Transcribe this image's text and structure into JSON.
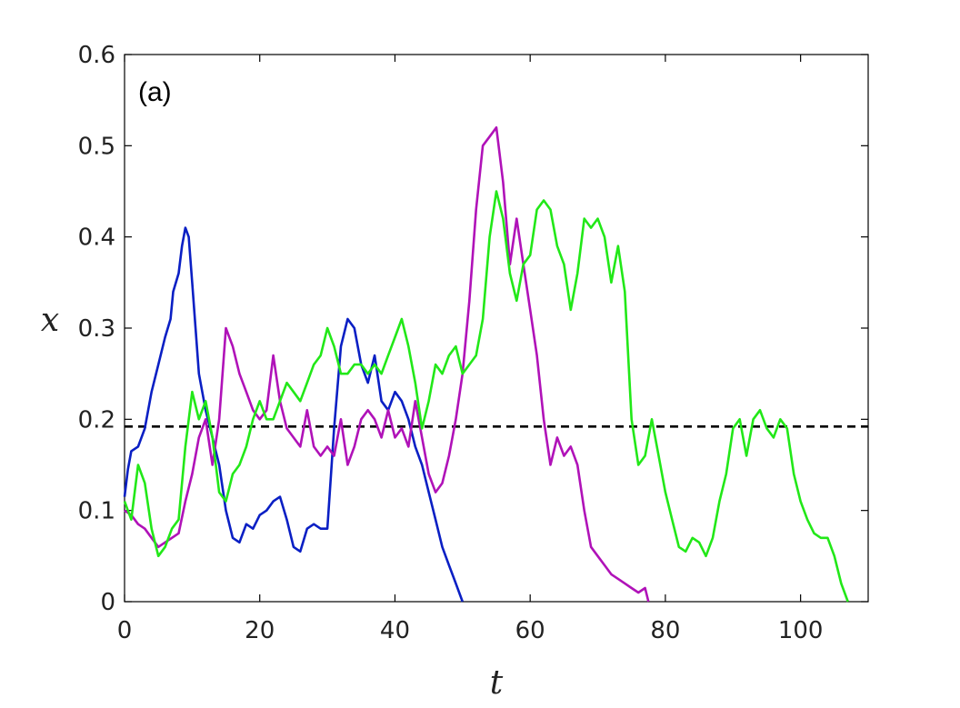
{
  "chart_data": {
    "type": "line",
    "title": "",
    "annotation": "(a)",
    "xlabel": "t",
    "ylabel": "x",
    "xlim": [
      0,
      110
    ],
    "ylim": [
      0,
      0.6
    ],
    "xticks": [
      0,
      20,
      40,
      60,
      80,
      100
    ],
    "yticks": [
      0,
      0.1,
      0.2,
      0.3,
      0.4,
      0.5,
      0.6
    ],
    "xtick_labels": [
      "0",
      "20",
      "40",
      "60",
      "80",
      "100"
    ],
    "ytick_labels": [
      "0",
      "0.1",
      "0.2",
      "0.3",
      "0.4",
      "0.5",
      "0.6"
    ],
    "grid": false,
    "legend": "none",
    "reference_line": {
      "y": 0.192,
      "style": "dashed",
      "color": "#000000"
    },
    "series": [
      {
        "color": "#0a1fc4",
        "points": [
          [
            0,
            0.115
          ],
          [
            0.5,
            0.145
          ],
          [
            1,
            0.165
          ],
          [
            2,
            0.17
          ],
          [
            3,
            0.19
          ],
          [
            4,
            0.23
          ],
          [
            5,
            0.26
          ],
          [
            6,
            0.29
          ],
          [
            6.8,
            0.31
          ],
          [
            7.2,
            0.34
          ],
          [
            8,
            0.36
          ],
          [
            8.5,
            0.39
          ],
          [
            9,
            0.41
          ],
          [
            9.5,
            0.4
          ],
          [
            10,
            0.35
          ],
          [
            10.5,
            0.3
          ],
          [
            11,
            0.25
          ],
          [
            12,
            0.21
          ],
          [
            13,
            0.18
          ],
          [
            14,
            0.15
          ],
          [
            15,
            0.1
          ],
          [
            16,
            0.07
          ],
          [
            17,
            0.065
          ],
          [
            18,
            0.085
          ],
          [
            19,
            0.08
          ],
          [
            20,
            0.095
          ],
          [
            21,
            0.1
          ],
          [
            22,
            0.11
          ],
          [
            23,
            0.115
          ],
          [
            24,
            0.09
          ],
          [
            25,
            0.06
          ],
          [
            26,
            0.055
          ],
          [
            27,
            0.08
          ],
          [
            28,
            0.085
          ],
          [
            29,
            0.08
          ],
          [
            30,
            0.08
          ],
          [
            31,
            0.19
          ],
          [
            32,
            0.28
          ],
          [
            33,
            0.31
          ],
          [
            34,
            0.3
          ],
          [
            35,
            0.26
          ],
          [
            36,
            0.24
          ],
          [
            37,
            0.27
          ],
          [
            38,
            0.22
          ],
          [
            39,
            0.21
          ],
          [
            40,
            0.23
          ],
          [
            41,
            0.22
          ],
          [
            42,
            0.2
          ],
          [
            43,
            0.17
          ],
          [
            44,
            0.15
          ],
          [
            45,
            0.12
          ],
          [
            46,
            0.09
          ],
          [
            47,
            0.06
          ],
          [
            48,
            0.04
          ],
          [
            49,
            0.02
          ],
          [
            50,
            0.0
          ]
        ]
      },
      {
        "color": "#b012b8",
        "points": [
          [
            0,
            0.1
          ],
          [
            1,
            0.095
          ],
          [
            2,
            0.085
          ],
          [
            3,
            0.08
          ],
          [
            4,
            0.07
          ],
          [
            5,
            0.06
          ],
          [
            6,
            0.065
          ],
          [
            7,
            0.07
          ],
          [
            8,
            0.075
          ],
          [
            9,
            0.11
          ],
          [
            10,
            0.14
          ],
          [
            11,
            0.18
          ],
          [
            12,
            0.2
          ],
          [
            13,
            0.15
          ],
          [
            14,
            0.2
          ],
          [
            15,
            0.3
          ],
          [
            16,
            0.28
          ],
          [
            17,
            0.25
          ],
          [
            18,
            0.23
          ],
          [
            19,
            0.21
          ],
          [
            20,
            0.2
          ],
          [
            21,
            0.21
          ],
          [
            22,
            0.27
          ],
          [
            23,
            0.22
          ],
          [
            24,
            0.19
          ],
          [
            25,
            0.18
          ],
          [
            26,
            0.17
          ],
          [
            27,
            0.21
          ],
          [
            28,
            0.17
          ],
          [
            29,
            0.16
          ],
          [
            30,
            0.17
          ],
          [
            31,
            0.16
          ],
          [
            32,
            0.2
          ],
          [
            33,
            0.15
          ],
          [
            34,
            0.17
          ],
          [
            35,
            0.2
          ],
          [
            36,
            0.21
          ],
          [
            37,
            0.2
          ],
          [
            38,
            0.18
          ],
          [
            39,
            0.21
          ],
          [
            40,
            0.18
          ],
          [
            41,
            0.19
          ],
          [
            42,
            0.17
          ],
          [
            43,
            0.22
          ],
          [
            44,
            0.18
          ],
          [
            45,
            0.14
          ],
          [
            46,
            0.12
          ],
          [
            47,
            0.13
          ],
          [
            48,
            0.16
          ],
          [
            49,
            0.2
          ],
          [
            50,
            0.25
          ],
          [
            51,
            0.33
          ],
          [
            52,
            0.43
          ],
          [
            53,
            0.5
          ],
          [
            54,
            0.51
          ],
          [
            55,
            0.52
          ],
          [
            56,
            0.46
          ],
          [
            57,
            0.37
          ],
          [
            58,
            0.42
          ],
          [
            59,
            0.37
          ],
          [
            60,
            0.32
          ],
          [
            61,
            0.27
          ],
          [
            62,
            0.2
          ],
          [
            63,
            0.15
          ],
          [
            64,
            0.18
          ],
          [
            65,
            0.16
          ],
          [
            66,
            0.17
          ],
          [
            67,
            0.15
          ],
          [
            68,
            0.1
          ],
          [
            69,
            0.06
          ],
          [
            70,
            0.05
          ],
          [
            71,
            0.04
          ],
          [
            72,
            0.03
          ],
          [
            73,
            0.025
          ],
          [
            74,
            0.02
          ],
          [
            75,
            0.015
          ],
          [
            76,
            0.01
          ],
          [
            77,
            0.015
          ],
          [
            77.5,
            0.0
          ]
        ]
      },
      {
        "color": "#22e818",
        "points": [
          [
            0,
            0.11
          ],
          [
            1,
            0.09
          ],
          [
            2,
            0.15
          ],
          [
            3,
            0.13
          ],
          [
            4,
            0.08
          ],
          [
            5,
            0.05
          ],
          [
            6,
            0.06
          ],
          [
            7,
            0.08
          ],
          [
            8,
            0.09
          ],
          [
            9,
            0.17
          ],
          [
            10,
            0.23
          ],
          [
            11,
            0.2
          ],
          [
            12,
            0.22
          ],
          [
            13,
            0.18
          ],
          [
            14,
            0.12
          ],
          [
            15,
            0.11
          ],
          [
            16,
            0.14
          ],
          [
            17,
            0.15
          ],
          [
            18,
            0.17
          ],
          [
            19,
            0.2
          ],
          [
            20,
            0.22
          ],
          [
            21,
            0.2
          ],
          [
            22,
            0.2
          ],
          [
            23,
            0.22
          ],
          [
            24,
            0.24
          ],
          [
            25,
            0.23
          ],
          [
            26,
            0.22
          ],
          [
            27,
            0.24
          ],
          [
            28,
            0.26
          ],
          [
            29,
            0.27
          ],
          [
            30,
            0.3
          ],
          [
            31,
            0.28
          ],
          [
            32,
            0.25
          ],
          [
            33,
            0.25
          ],
          [
            34,
            0.26
          ],
          [
            35,
            0.26
          ],
          [
            36,
            0.25
          ],
          [
            37,
            0.26
          ],
          [
            38,
            0.25
          ],
          [
            39,
            0.27
          ],
          [
            40,
            0.29
          ],
          [
            41,
            0.31
          ],
          [
            42,
            0.28
          ],
          [
            43,
            0.24
          ],
          [
            44,
            0.19
          ],
          [
            45,
            0.22
          ],
          [
            46,
            0.26
          ],
          [
            47,
            0.25
          ],
          [
            48,
            0.27
          ],
          [
            49,
            0.28
          ],
          [
            50,
            0.25
          ],
          [
            51,
            0.26
          ],
          [
            52,
            0.27
          ],
          [
            53,
            0.31
          ],
          [
            54,
            0.4
          ],
          [
            55,
            0.45
          ],
          [
            56,
            0.42
          ],
          [
            57,
            0.36
          ],
          [
            58,
            0.33
          ],
          [
            59,
            0.37
          ],
          [
            60,
            0.38
          ],
          [
            61,
            0.43
          ],
          [
            62,
            0.44
          ],
          [
            63,
            0.43
          ],
          [
            64,
            0.39
          ],
          [
            65,
            0.37
          ],
          [
            66,
            0.32
          ],
          [
            67,
            0.36
          ],
          [
            68,
            0.42
          ],
          [
            69,
            0.41
          ],
          [
            70,
            0.42
          ],
          [
            71,
            0.4
          ],
          [
            72,
            0.35
          ],
          [
            73,
            0.39
          ],
          [
            74,
            0.34
          ],
          [
            75,
            0.2
          ],
          [
            76,
            0.15
          ],
          [
            77,
            0.16
          ],
          [
            78,
            0.2
          ],
          [
            79,
            0.16
          ],
          [
            80,
            0.12
          ],
          [
            81,
            0.09
          ],
          [
            82,
            0.06
          ],
          [
            83,
            0.055
          ],
          [
            84,
            0.07
          ],
          [
            85,
            0.065
          ],
          [
            86,
            0.05
          ],
          [
            87,
            0.07
          ],
          [
            88,
            0.11
          ],
          [
            89,
            0.14
          ],
          [
            90,
            0.19
          ],
          [
            91,
            0.2
          ],
          [
            92,
            0.16
          ],
          [
            93,
            0.2
          ],
          [
            94,
            0.21
          ],
          [
            95,
            0.19
          ],
          [
            96,
            0.18
          ],
          [
            97,
            0.2
          ],
          [
            98,
            0.19
          ],
          [
            99,
            0.14
          ],
          [
            100,
            0.11
          ],
          [
            101,
            0.09
          ],
          [
            102,
            0.075
          ],
          [
            103,
            0.07
          ],
          [
            104,
            0.07
          ],
          [
            105,
            0.05
          ],
          [
            106,
            0.02
          ],
          [
            107,
            0.0
          ]
        ]
      }
    ]
  }
}
